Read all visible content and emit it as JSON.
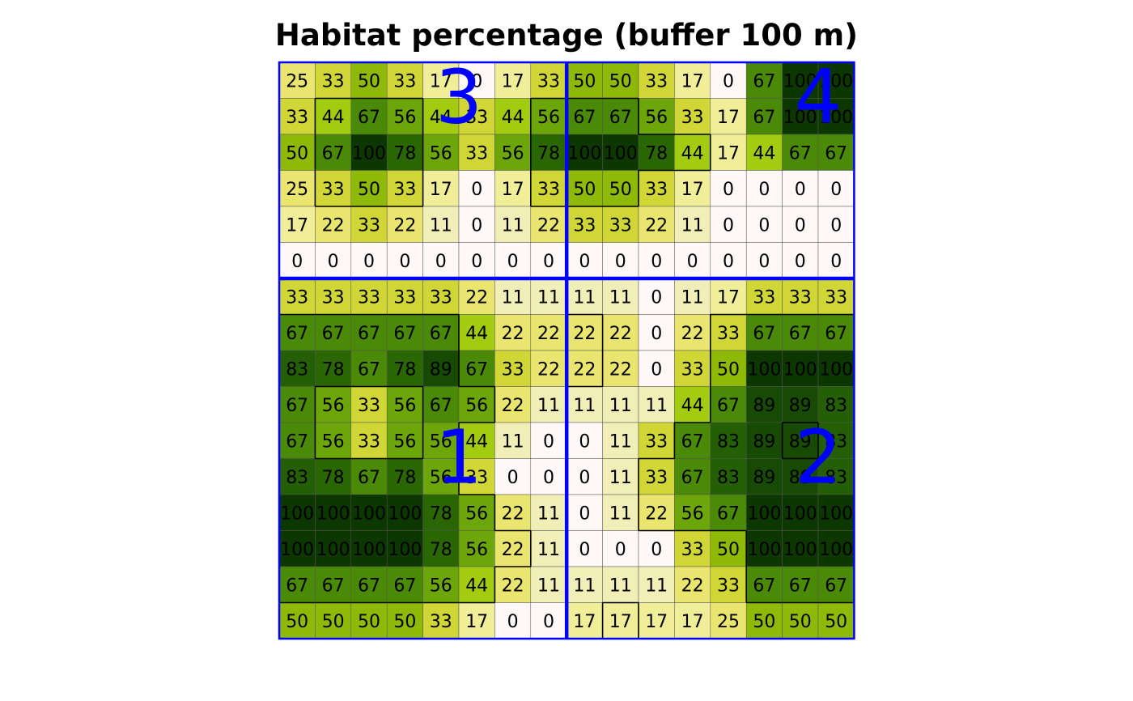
{
  "chart_data": {
    "type": "heatmap",
    "title": "Habitat percentage (buffer 100 m)",
    "rows": 16,
    "cols": 16,
    "values": [
      [
        25,
        33,
        50,
        33,
        17,
        0,
        17,
        33,
        50,
        50,
        33,
        17,
        0,
        67,
        100,
        100
      ],
      [
        33,
        44,
        67,
        56,
        44,
        33,
        44,
        56,
        67,
        67,
        56,
        33,
        17,
        67,
        100,
        100
      ],
      [
        50,
        67,
        100,
        78,
        56,
        33,
        56,
        78,
        100,
        100,
        78,
        44,
        17,
        44,
        67,
        67
      ],
      [
        25,
        33,
        50,
        33,
        17,
        0,
        17,
        33,
        50,
        50,
        33,
        17,
        0,
        0,
        0,
        0
      ],
      [
        17,
        22,
        33,
        22,
        11,
        0,
        11,
        22,
        33,
        33,
        22,
        11,
        0,
        0,
        0,
        0
      ],
      [
        0,
        0,
        0,
        0,
        0,
        0,
        0,
        0,
        0,
        0,
        0,
        0,
        0,
        0,
        0,
        0
      ],
      [
        33,
        33,
        33,
        33,
        33,
        22,
        11,
        11,
        11,
        11,
        0,
        11,
        17,
        33,
        33,
        33
      ],
      [
        67,
        67,
        67,
        67,
        67,
        44,
        22,
        22,
        22,
        22,
        0,
        22,
        33,
        67,
        67,
        67
      ],
      [
        83,
        78,
        67,
        78,
        89,
        67,
        33,
        22,
        22,
        22,
        0,
        33,
        50,
        100,
        100,
        100
      ],
      [
        67,
        56,
        33,
        56,
        67,
        56,
        22,
        11,
        11,
        11,
        11,
        44,
        67,
        89,
        89,
        83
      ],
      [
        67,
        56,
        33,
        56,
        56,
        44,
        11,
        0,
        0,
        11,
        33,
        67,
        83,
        89,
        89,
        83
      ],
      [
        83,
        78,
        67,
        78,
        56,
        33,
        0,
        0,
        0,
        11,
        33,
        67,
        83,
        89,
        89,
        83
      ],
      [
        100,
        100,
        100,
        100,
        78,
        56,
        22,
        11,
        0,
        11,
        22,
        56,
        67,
        100,
        100,
        100
      ],
      [
        100,
        100,
        100,
        100,
        78,
        56,
        22,
        11,
        0,
        0,
        0,
        33,
        50,
        100,
        100,
        100
      ],
      [
        67,
        67,
        67,
        67,
        56,
        44,
        22,
        11,
        11,
        11,
        11,
        22,
        33,
        67,
        67,
        67
      ],
      [
        50,
        50,
        50,
        50,
        33,
        17,
        0,
        0,
        17,
        17,
        17,
        17,
        25,
        50,
        50,
        50
      ]
    ],
    "habitat_mask": [
      [
        0,
        0,
        0,
        0,
        0,
        0,
        0,
        0,
        0,
        0,
        0,
        0,
        0,
        0,
        0,
        0
      ],
      [
        0,
        1,
        1,
        1,
        0,
        0,
        0,
        1,
        1,
        1,
        0,
        0,
        0,
        0,
        0,
        0
      ],
      [
        0,
        1,
        1,
        1,
        0,
        0,
        0,
        1,
        1,
        1,
        1,
        1,
        0,
        0,
        0,
        0
      ],
      [
        0,
        1,
        1,
        1,
        0,
        0,
        0,
        1,
        1,
        1,
        0,
        0,
        0,
        0,
        0,
        0
      ],
      [
        0,
        0,
        0,
        0,
        0,
        0,
        0,
        0,
        0,
        0,
        0,
        0,
        0,
        0,
        0,
        0
      ],
      [
        0,
        0,
        0,
        0,
        0,
        0,
        0,
        0,
        0,
        0,
        0,
        0,
        0,
        0,
        0,
        0
      ],
      [
        0,
        0,
        0,
        0,
        0,
        0,
        0,
        0,
        0,
        0,
        0,
        0,
        0,
        0,
        0,
        0
      ],
      [
        1,
        1,
        1,
        1,
        1,
        0,
        0,
        0,
        1,
        0,
        0,
        0,
        1,
        1,
        1,
        1
      ],
      [
        1,
        1,
        1,
        1,
        1,
        0,
        0,
        0,
        1,
        0,
        0,
        0,
        1,
        1,
        1,
        1
      ],
      [
        1,
        0,
        0,
        0,
        1,
        1,
        0,
        0,
        0,
        0,
        0,
        0,
        1,
        1,
        1,
        1
      ],
      [
        1,
        0,
        0,
        0,
        1,
        0,
        0,
        0,
        0,
        0,
        0,
        1,
        1,
        1,
        0,
        1
      ],
      [
        1,
        1,
        1,
        1,
        1,
        0,
        0,
        0,
        0,
        0,
        1,
        1,
        1,
        1,
        1,
        1
      ],
      [
        1,
        1,
        1,
        1,
        1,
        1,
        0,
        0,
        0,
        0,
        1,
        1,
        1,
        1,
        1,
        1
      ],
      [
        1,
        1,
        1,
        1,
        1,
        1,
        1,
        0,
        0,
        0,
        0,
        0,
        0,
        1,
        1,
        1
      ],
      [
        1,
        1,
        1,
        1,
        1,
        1,
        0,
        0,
        0,
        0,
        0,
        0,
        0,
        1,
        1,
        1
      ],
      [
        0,
        0,
        0,
        0,
        0,
        0,
        0,
        0,
        0,
        1,
        0,
        0,
        0,
        0,
        0,
        0
      ]
    ],
    "color_scale": [
      {
        "value": 0,
        "color": "#fef9f8"
      },
      {
        "value": 11,
        "color": "#f1eeb8"
      },
      {
        "value": 17,
        "color": "#f1ee9a"
      },
      {
        "value": 22,
        "color": "#e9e56f"
      },
      {
        "value": 25,
        "color": "#e9e56f"
      },
      {
        "value": 33,
        "color": "#cfd636"
      },
      {
        "value": 44,
        "color": "#a3cb0f"
      },
      {
        "value": 50,
        "color": "#8fb907"
      },
      {
        "value": 56,
        "color": "#6ca609"
      },
      {
        "value": 67,
        "color": "#4a8a06"
      },
      {
        "value": 78,
        "color": "#2a6602"
      },
      {
        "value": 83,
        "color": "#245f05"
      },
      {
        "value": 89,
        "color": "#174b04"
      },
      {
        "value": 100,
        "color": "#0c3800"
      }
    ],
    "quadrant_labels": [
      {
        "label": "3",
        "row": 1,
        "col": 5
      },
      {
        "label": "4",
        "row": 1,
        "col": 15
      },
      {
        "label": "1",
        "row": 11,
        "col": 5
      },
      {
        "label": "2",
        "row": 11,
        "col": 15
      }
    ],
    "divider_color": "#0000ff"
  }
}
